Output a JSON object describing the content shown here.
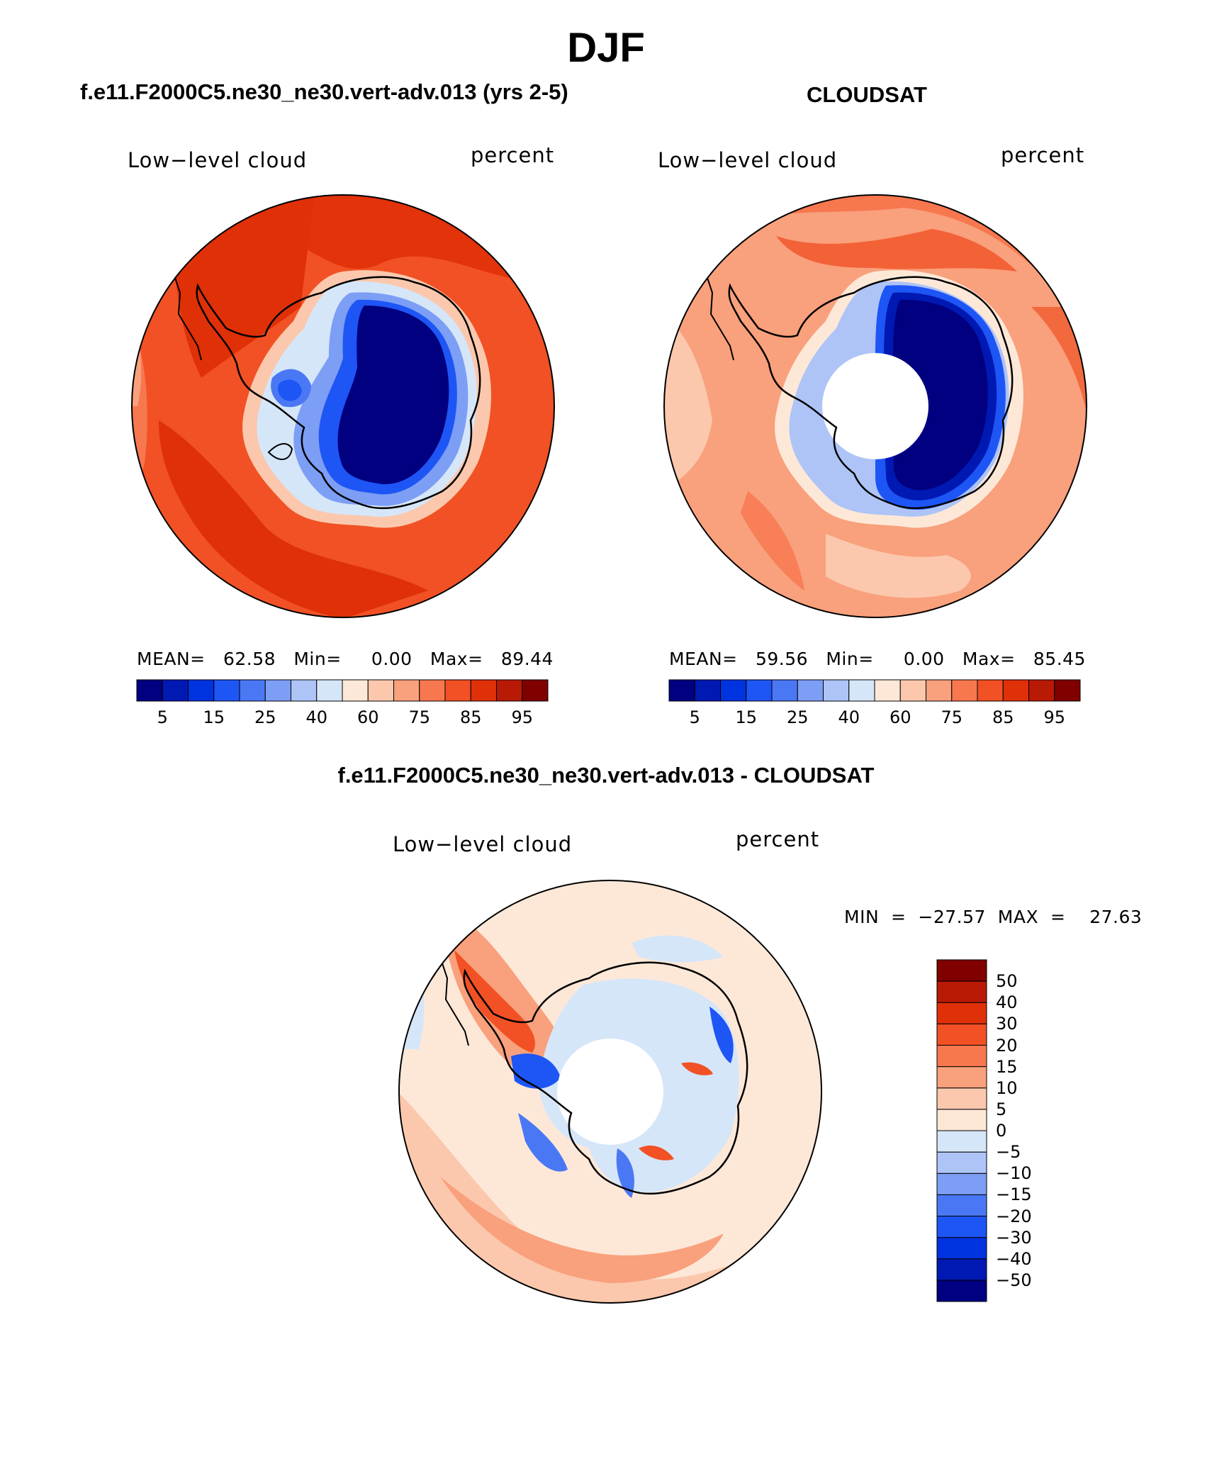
{
  "figure": {
    "season": "DJF",
    "model_title": "f.e11.F2000C5.ne30_ne30.vert-adv.013 (yrs 2-5)",
    "obs_title": "CLOUDSAT",
    "diff_title": "f.e11.F2000C5.ne30_ne30.vert-adv.013 - CLOUDSAT"
  },
  "panels": {
    "model": {
      "variable": "Low−level cloud",
      "units": "percent",
      "stats": "MEAN=   62.58   Min=     0.00   Max=   89.44"
    },
    "obs": {
      "variable": "Low−level cloud",
      "units": "percent",
      "stats": "MEAN=   59.56   Min=     0.00   Max=   85.45"
    },
    "diff": {
      "variable": "Low−level cloud",
      "units": "percent",
      "stats": "MIN  =  −27.57  MAX  =    27.63"
    }
  },
  "colorbars": {
    "abs": {
      "colors": [
        "#000080",
        "#0019b3",
        "#0033e0",
        "#1e55f5",
        "#4a78f5",
        "#7d9ef5",
        "#aec4f7",
        "#d6e6f9",
        "#fde8d8",
        "#fbc8ad",
        "#f9a07c",
        "#f7774f",
        "#f15124",
        "#e03008",
        "#b81a05",
        "#800000"
      ],
      "tick_labels": [
        "5",
        "15",
        "25",
        "40",
        "60",
        "75",
        "85",
        "95"
      ]
    },
    "diff": {
      "colors": [
        "#000080",
        "#0019b3",
        "#0033e0",
        "#1e55f5",
        "#4a78f5",
        "#7d9ef5",
        "#aec4f7",
        "#d6e6f9",
        "#fde8d8",
        "#fbc8ad",
        "#f9a07c",
        "#f7774f",
        "#f15124",
        "#e03008",
        "#b81a05",
        "#800000"
      ],
      "tick_labels": [
        "50",
        "40",
        "30",
        "20",
        "15",
        "10",
        "5",
        "0",
        "−5",
        "−10",
        "−15",
        "−20",
        "−30",
        "−40",
        "−50"
      ]
    }
  },
  "chart_data": [
    {
      "type": "heatmap",
      "title": "f.e11.F2000C5.ne30_ne30.vert-adv.013 (yrs 2-5)",
      "variable": "Low-level cloud",
      "units": "percent",
      "projection": "south polar stereographic",
      "mean": 62.58,
      "min": 0.0,
      "max": 89.44,
      "contour_levels": [
        5,
        10,
        15,
        20,
        25,
        30,
        40,
        50,
        60,
        70,
        75,
        80,
        85,
        90,
        95
      ]
    },
    {
      "type": "heatmap",
      "title": "CLOUDSAT",
      "variable": "Low-level cloud",
      "units": "percent",
      "projection": "south polar stereographic",
      "mean": 59.56,
      "min": 0.0,
      "max": 85.45,
      "contour_levels": [
        5,
        10,
        15,
        20,
        25,
        30,
        40,
        50,
        60,
        70,
        75,
        80,
        85,
        90,
        95
      ]
    },
    {
      "type": "heatmap",
      "title": "f.e11.F2000C5.ne30_ne30.vert-adv.013 - CLOUDSAT",
      "variable": "Low-level cloud",
      "units": "percent",
      "projection": "south polar stereographic",
      "min": -27.57,
      "max": 27.63,
      "contour_levels": [
        -50,
        -40,
        -30,
        -20,
        -15,
        -10,
        -5,
        0,
        5,
        10,
        15,
        20,
        30,
        40,
        50
      ]
    }
  ]
}
